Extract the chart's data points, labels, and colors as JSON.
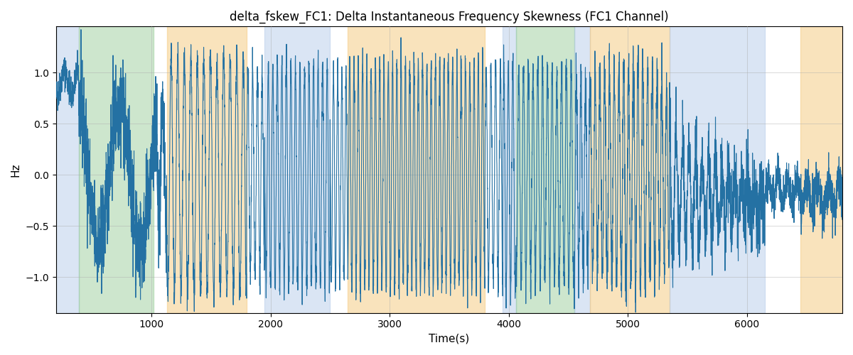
{
  "title": "delta_fskew_FC1: Delta Instantaneous Frequency Skewness (FC1 Channel)",
  "xlabel": "Time(s)",
  "ylabel": "Hz",
  "xlim": [
    200,
    6800
  ],
  "ylim": [
    -1.35,
    1.45
  ],
  "line_color": "#2471a3",
  "line_width": 0.8,
  "bg_color": "#ffffff",
  "grid_color": "#aaaaaa",
  "title_fontsize": 12,
  "label_fontsize": 11,
  "tick_fontsize": 10,
  "bands": [
    {
      "start": 200,
      "end": 390,
      "color": "#aec6e8",
      "alpha": 0.45
    },
    {
      "start": 390,
      "end": 1020,
      "color": "#90c990",
      "alpha": 0.45
    },
    {
      "start": 1020,
      "end": 1130,
      "color": "#ffffff",
      "alpha": 0.0
    },
    {
      "start": 1130,
      "end": 1800,
      "color": "#f5c87a",
      "alpha": 0.5
    },
    {
      "start": 1800,
      "end": 1950,
      "color": "#ffffff",
      "alpha": 0.0
    },
    {
      "start": 1950,
      "end": 2500,
      "color": "#aec6e8",
      "alpha": 0.45
    },
    {
      "start": 2500,
      "end": 2650,
      "color": "#ffffff",
      "alpha": 0.0
    },
    {
      "start": 2650,
      "end": 3800,
      "color": "#f5c87a",
      "alpha": 0.5
    },
    {
      "start": 3800,
      "end": 3950,
      "color": "#ffffff",
      "alpha": 0.0
    },
    {
      "start": 3950,
      "end": 4060,
      "color": "#aec6e8",
      "alpha": 0.45
    },
    {
      "start": 4060,
      "end": 4060,
      "color": "#ffffff",
      "alpha": 0.0
    },
    {
      "start": 4060,
      "end": 4550,
      "color": "#90c990",
      "alpha": 0.45
    },
    {
      "start": 4550,
      "end": 4680,
      "color": "#aec6e8",
      "alpha": 0.45
    },
    {
      "start": 4680,
      "end": 4680,
      "color": "#ffffff",
      "alpha": 0.0
    },
    {
      "start": 4680,
      "end": 5350,
      "color": "#f5c87a",
      "alpha": 0.5
    },
    {
      "start": 5350,
      "end": 6150,
      "color": "#aec6e8",
      "alpha": 0.45
    },
    {
      "start": 6150,
      "end": 6450,
      "color": "#ffffff",
      "alpha": 0.0
    },
    {
      "start": 6450,
      "end": 6800,
      "color": "#f5c87a",
      "alpha": 0.5
    }
  ],
  "t_start": 200,
  "t_end": 6800,
  "n_points": 6601,
  "seed": 42
}
